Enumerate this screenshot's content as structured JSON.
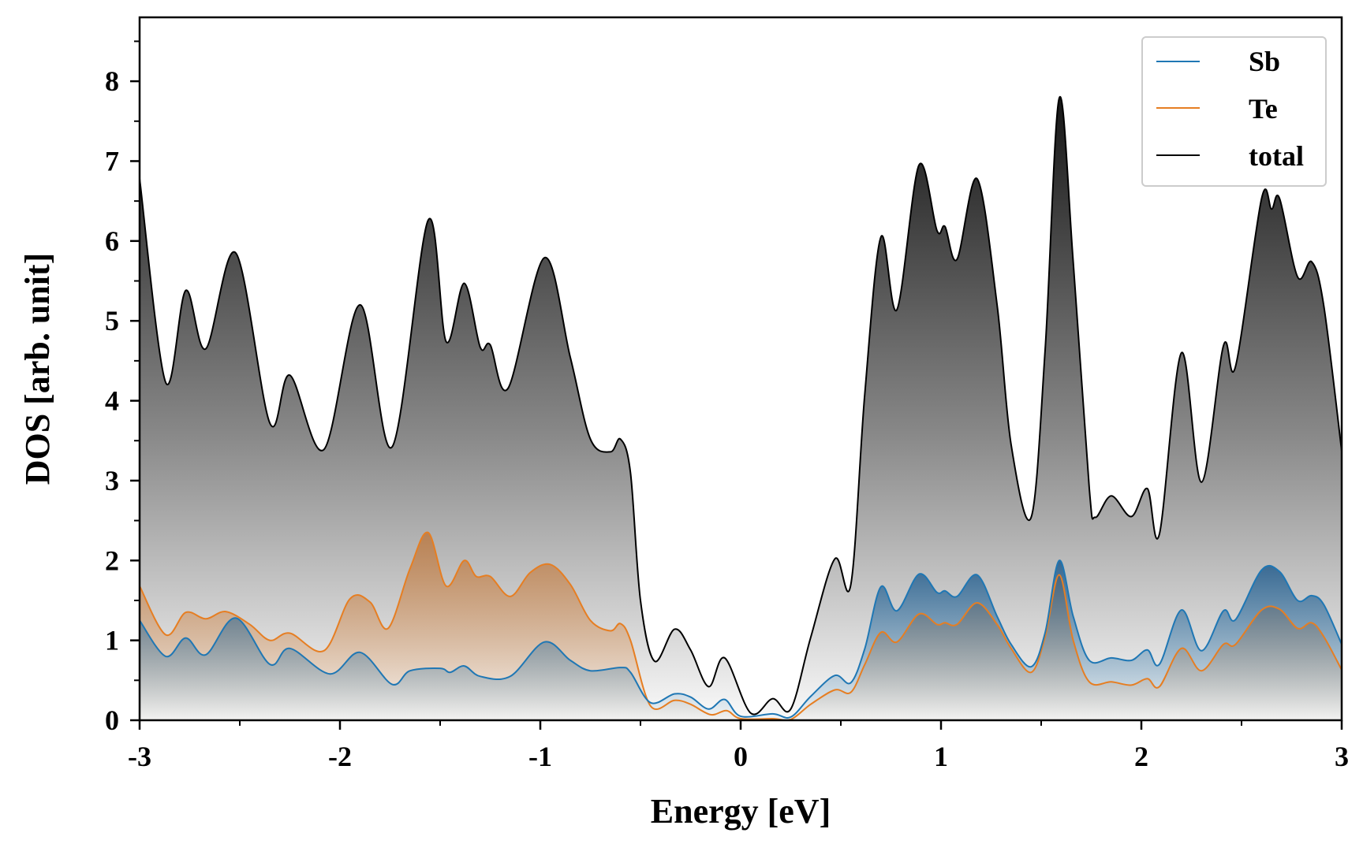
{
  "chart_data": {
    "type": "area",
    "title": "",
    "xlabel": "Energy [eV]",
    "ylabel": "DOS [arb. unit]",
    "xlim": [
      -3,
      3
    ],
    "ylim": [
      0,
      8.8
    ],
    "xticks": [
      "-3",
      "-2",
      "-1",
      "0",
      "1",
      "2",
      "3"
    ],
    "xtick_values": [
      -3,
      -2,
      -1,
      0,
      1,
      2,
      3
    ],
    "yticks": [
      "0",
      "1",
      "2",
      "3",
      "4",
      "5",
      "6",
      "7",
      "8"
    ],
    "ytick_values": [
      0,
      1,
      2,
      3,
      4,
      5,
      6,
      7,
      8
    ],
    "legend_placement": "top-right",
    "grid": false,
    "series": [
      {
        "name": "total",
        "color": "#000000",
        "x": [
          -3,
          -2.87,
          -2.77,
          -2.67,
          -2.52,
          -2.35,
          -2.25,
          -2.08,
          -1.9,
          -1.74,
          -1.56,
          -1.47,
          -1.38,
          -1.3,
          -1.25,
          -1.16,
          -0.98,
          -0.85,
          -0.75,
          -0.65,
          -0.6,
          -0.55,
          -0.5,
          -0.43,
          -0.33,
          -0.25,
          -0.16,
          -0.08,
          0.05,
          0.16,
          0.25,
          0.35,
          0.47,
          0.55,
          0.62,
          0.7,
          0.78,
          0.89,
          0.98,
          1.02,
          1.08,
          1.18,
          1.28,
          1.35,
          1.45,
          1.52,
          1.59,
          1.66,
          1.74,
          1.77,
          1.85,
          1.95,
          2.03,
          2.09,
          2.2,
          2.3,
          2.41,
          2.47,
          2.6,
          2.65,
          2.69,
          2.78,
          2.85,
          2.91,
          3.0
        ],
        "y": [
          6.78,
          4.23,
          5.38,
          4.65,
          5.85,
          3.72,
          4.32,
          3.39,
          5.2,
          3.42,
          6.26,
          4.74,
          5.47,
          4.67,
          4.7,
          4.16,
          5.79,
          4.54,
          3.52,
          3.36,
          3.52,
          3.1,
          1.5,
          0.74,
          1.14,
          0.88,
          0.42,
          0.78,
          0.09,
          0.27,
          0.14,
          1.04,
          2.02,
          1.7,
          4.1,
          6.05,
          5.14,
          6.95,
          6.13,
          6.18,
          5.77,
          6.78,
          5.2,
          3.45,
          2.54,
          4.65,
          7.79,
          5.74,
          2.9,
          2.54,
          2.81,
          2.55,
          2.9,
          2.33,
          4.6,
          2.98,
          4.69,
          4.43,
          6.53,
          6.4,
          6.53,
          5.55,
          5.74,
          5.2,
          3.37
        ]
      },
      {
        "name": "Te",
        "color": "#e67e22",
        "x": [
          -3,
          -2.87,
          -2.77,
          -2.67,
          -2.57,
          -2.45,
          -2.35,
          -2.25,
          -2.08,
          -1.95,
          -1.85,
          -1.76,
          -1.65,
          -1.56,
          -1.47,
          -1.38,
          -1.32,
          -1.25,
          -1.15,
          -1.05,
          -0.95,
          -0.85,
          -0.75,
          -0.65,
          -0.6,
          -0.55,
          -0.45,
          -0.33,
          -0.25,
          -0.15,
          -0.07,
          0.0,
          0.16,
          0.25,
          0.35,
          0.47,
          0.55,
          0.62,
          0.7,
          0.78,
          0.89,
          0.98,
          1.02,
          1.08,
          1.18,
          1.28,
          1.35,
          1.45,
          1.52,
          1.59,
          1.66,
          1.74,
          1.85,
          1.95,
          2.03,
          2.09,
          2.2,
          2.3,
          2.41,
          2.47,
          2.6,
          2.69,
          2.78,
          2.85,
          2.91,
          3.0
        ],
        "y": [
          1.68,
          1.07,
          1.35,
          1.27,
          1.36,
          1.2,
          1.0,
          1.09,
          0.87,
          1.52,
          1.48,
          1.15,
          1.9,
          2.35,
          1.68,
          2.0,
          1.8,
          1.8,
          1.55,
          1.85,
          1.95,
          1.7,
          1.25,
          1.12,
          1.21,
          1.0,
          0.18,
          0.25,
          0.2,
          0.07,
          0.12,
          0.02,
          0.02,
          0.01,
          0.2,
          0.38,
          0.35,
          0.7,
          1.1,
          0.98,
          1.33,
          1.2,
          1.22,
          1.2,
          1.47,
          1.2,
          0.9,
          0.6,
          1.05,
          1.82,
          1.0,
          0.48,
          0.48,
          0.44,
          0.52,
          0.42,
          0.9,
          0.62,
          0.95,
          0.95,
          1.38,
          1.39,
          1.15,
          1.22,
          1.05,
          0.63
        ]
      },
      {
        "name": "Sb",
        "color": "#1f77b4",
        "x": [
          -3,
          -2.87,
          -2.77,
          -2.67,
          -2.52,
          -2.35,
          -2.25,
          -2.05,
          -1.9,
          -1.74,
          -1.65,
          -1.5,
          -1.45,
          -1.38,
          -1.3,
          -1.15,
          -0.98,
          -0.85,
          -0.75,
          -0.6,
          -0.55,
          -0.45,
          -0.33,
          -0.25,
          -0.16,
          -0.08,
          0.0,
          0.16,
          0.25,
          0.35,
          0.47,
          0.55,
          0.62,
          0.7,
          0.78,
          0.89,
          0.98,
          1.02,
          1.08,
          1.18,
          1.28,
          1.35,
          1.45,
          1.52,
          1.59,
          1.66,
          1.74,
          1.85,
          1.95,
          2.03,
          2.09,
          2.2,
          2.3,
          2.41,
          2.47,
          2.6,
          2.69,
          2.78,
          2.85,
          2.91,
          3.0
        ],
        "y": [
          1.25,
          0.8,
          1.03,
          0.82,
          1.28,
          0.7,
          0.9,
          0.58,
          0.85,
          0.45,
          0.62,
          0.65,
          0.6,
          0.68,
          0.55,
          0.55,
          0.98,
          0.75,
          0.62,
          0.66,
          0.6,
          0.22,
          0.33,
          0.29,
          0.14,
          0.26,
          0.05,
          0.08,
          0.04,
          0.3,
          0.56,
          0.47,
          0.9,
          1.67,
          1.37,
          1.83,
          1.6,
          1.62,
          1.55,
          1.82,
          1.3,
          0.95,
          0.67,
          1.1,
          2.0,
          1.3,
          0.75,
          0.78,
          0.75,
          0.88,
          0.7,
          1.38,
          0.87,
          1.37,
          1.26,
          1.88,
          1.86,
          1.5,
          1.56,
          1.45,
          0.95
        ]
      }
    ],
    "legend": [
      "Sb",
      "Te",
      "total"
    ]
  }
}
